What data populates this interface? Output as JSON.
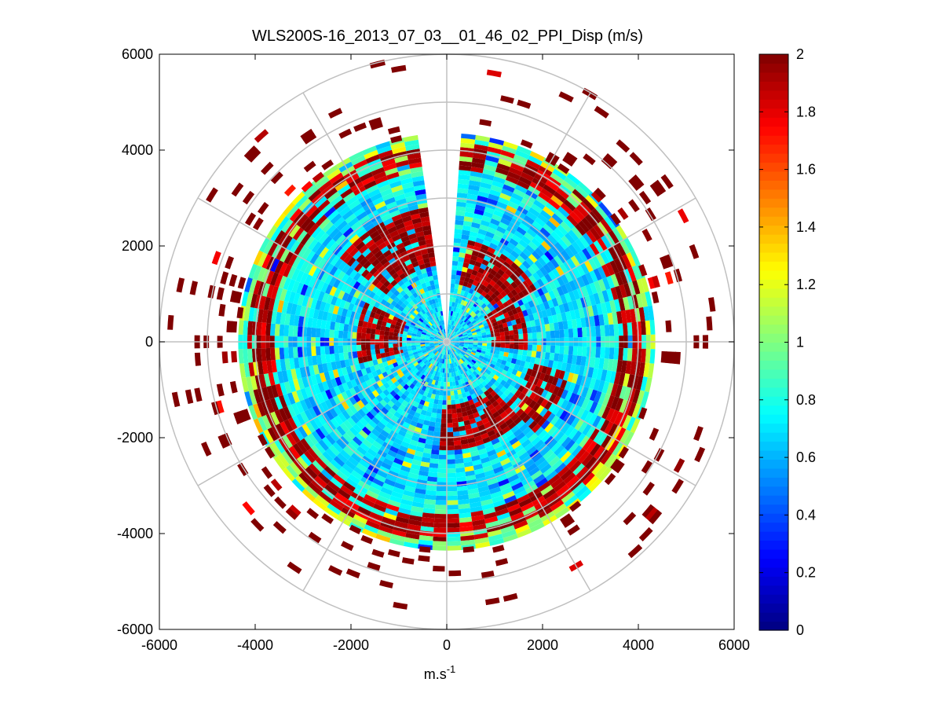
{
  "chart_data": {
    "type": "heatmap",
    "subtype": "polar-ppi",
    "title": "WLS200S-16_2013_07_03__01_46_02_PPI_Disp (m/s)",
    "xlabel": "m.s",
    "xlabel_superscript": "-1",
    "ylabel": "",
    "xlim": [
      -6000,
      6000
    ],
    "ylim": [
      -6000,
      6000
    ],
    "xticks": [
      -6000,
      -4000,
      -2000,
      0,
      2000,
      4000,
      6000
    ],
    "yticks": [
      -6000,
      -4000,
      -2000,
      0,
      2000,
      4000,
      6000
    ],
    "xtick_labels": [
      "-6000",
      "-4000",
      "-2000",
      "0",
      "2000",
      "4000",
      "6000"
    ],
    "ytick_labels": [
      "-6000",
      "-4000",
      "-2000",
      "0",
      "2000",
      "4000",
      "6000"
    ],
    "polar_rings": [
      1000,
      2000,
      3000,
      4000,
      5000,
      6000
    ],
    "polar_spokes_deg": [
      0,
      30,
      60,
      90,
      120,
      150,
      180,
      210,
      240,
      270,
      300,
      330
    ],
    "gap_sector_deg": [
      -6,
      4
    ],
    "colorbar": {
      "min": 0,
      "max": 2,
      "colormap": "jet",
      "ticks": [
        0,
        0.2,
        0.4,
        0.6,
        0.8,
        1,
        1.2,
        1.4,
        1.6,
        1.8,
        2
      ],
      "tick_labels": [
        "0",
        "0.2",
        "0.4",
        "0.6",
        "0.8",
        "1",
        "1.2",
        "1.4",
        "1.6",
        "1.8",
        "2"
      ]
    },
    "field": {
      "max_range": 6000,
      "range_gate": 95,
      "beam_width_deg": 4,
      "dense_radius": 4300,
      "value_min": 0,
      "value_max": 2,
      "hot_zones": [
        {
          "az": 330,
          "r": 2200,
          "daz": 22,
          "dr": 600
        },
        {
          "az": 275,
          "r": 1400,
          "daz": 20,
          "dr": 450
        },
        {
          "az": 35,
          "r": 1700,
          "daz": 25,
          "dr": 500
        },
        {
          "az": 75,
          "r": 1300,
          "daz": 20,
          "dr": 400
        },
        {
          "az": 160,
          "r": 1800,
          "daz": 25,
          "dr": 500
        },
        {
          "az": 120,
          "r": 2200,
          "daz": 15,
          "dr": 400
        }
      ],
      "outer_red_ring": 3900
    }
  }
}
